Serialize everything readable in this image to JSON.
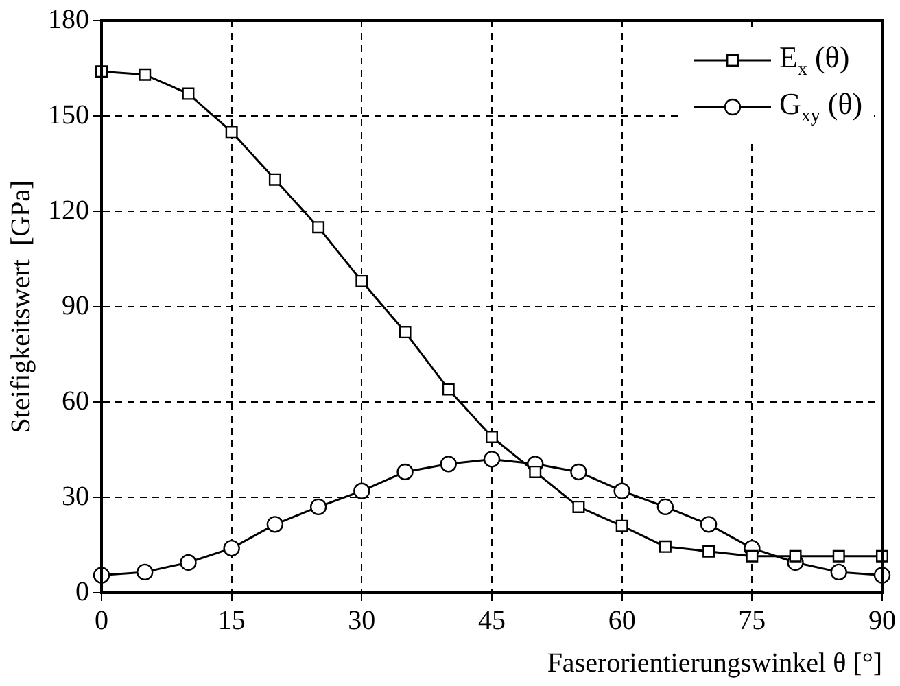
{
  "chart_data": {
    "type": "line",
    "xlabel": "Faserorientierungswinkel θ [°]",
    "ylabel": "Steifigkeitswert  [GPa]",
    "x": [
      0,
      5,
      10,
      15,
      20,
      25,
      30,
      35,
      40,
      45,
      50,
      55,
      60,
      65,
      70,
      75,
      80,
      85,
      90
    ],
    "series": [
      {
        "name": "E$_{x}$ (θ)",
        "color": "#000000",
        "marker": "square",
        "values": [
          164,
          163,
          157,
          145,
          130,
          115,
          98,
          82,
          64,
          49,
          38,
          27,
          21,
          14.5,
          13,
          11.5,
          11.5,
          11.5,
          11.5
        ]
      },
      {
        "name": "G$_{xy}$ (θ)",
        "color": "#000000",
        "marker": "circle",
        "values": [
          5.5,
          6.5,
          9.5,
          14,
          21.5,
          27,
          32,
          38,
          40.5,
          42,
          40.5,
          38,
          32,
          27,
          21.5,
          14,
          9.5,
          6.5,
          5.5
        ]
      }
    ],
    "xlim": [
      0,
      90
    ],
    "xticks": [
      0,
      15,
      30,
      45,
      60,
      75,
      90
    ],
    "ylim": [
      0,
      180
    ],
    "yticks": [
      0,
      30,
      60,
      90,
      120,
      150,
      180
    ],
    "grid": true,
    "line_style": "solid",
    "legend": "top right"
  }
}
